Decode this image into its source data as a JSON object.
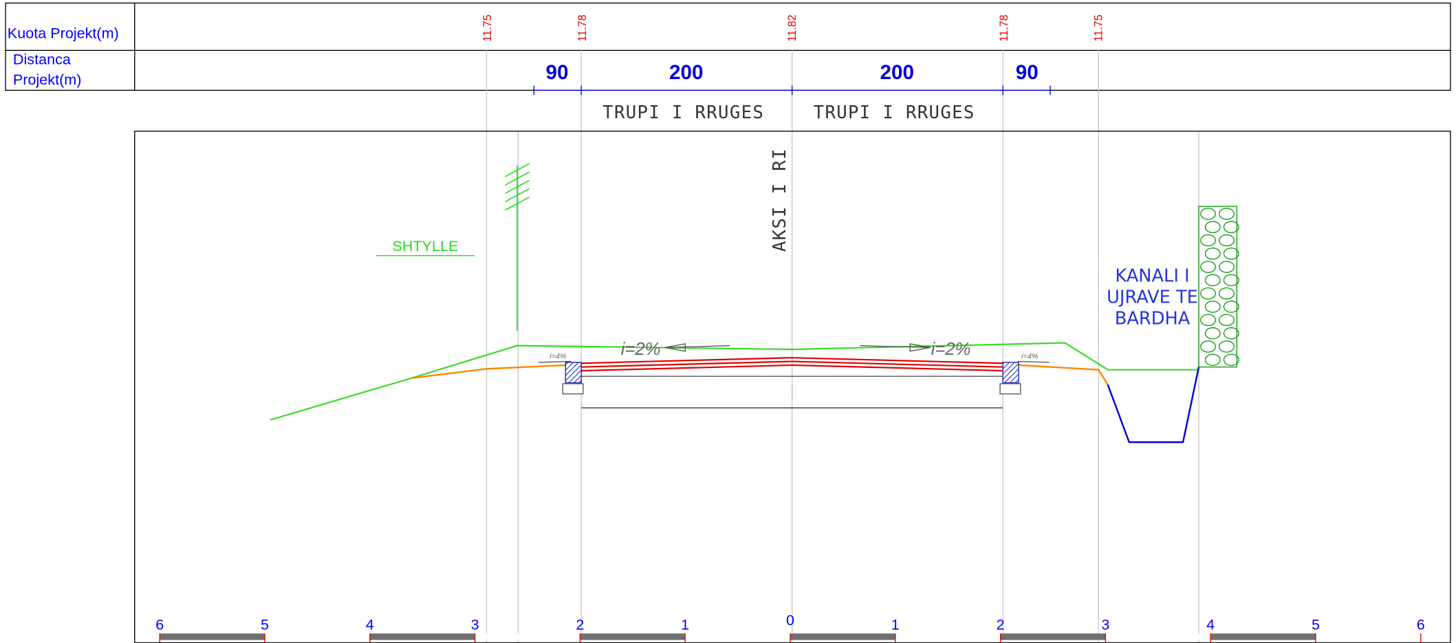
{
  "header": {
    "rows": [
      "Kuota Projekt(m)",
      [
        "Distanca",
        "Projekt(m)"
      ]
    ]
  },
  "elevations": [
    "11.75",
    "11.78",
    "11.82",
    "11.78",
    "11.75"
  ],
  "distances": [
    "90",
    "200",
    "200",
    "90"
  ],
  "sections": [
    "TRUPI I RRUGES",
    "TRUPI I RRUGES"
  ],
  "axis_label": "AKSI I RI",
  "pole_label": "SHTYLLE",
  "slopes": [
    "i=2%",
    "i=2%"
  ],
  "curb_slopes": [
    "i=4%",
    "i=4%"
  ],
  "canal_label": [
    "KANALI I",
    "UJRAVE TE",
    "BARDHA"
  ],
  "scale": [
    "6",
    "5",
    "4",
    "3",
    "2",
    "1",
    "0",
    "1",
    "2",
    "3",
    "4",
    "5",
    "6"
  ]
}
